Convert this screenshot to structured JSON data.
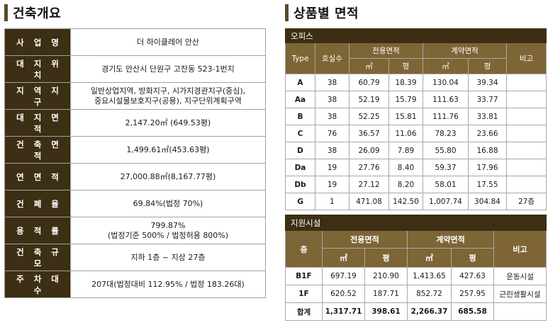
{
  "overview": {
    "title": "건축개요",
    "rows": [
      {
        "label": "사 업 명",
        "value": "더 하이클레어 안산"
      },
      {
        "label": "대 지 위 치",
        "value": "경기도 안산시 단원구 고잔동 523-1번지"
      },
      {
        "label": "지 역 지 구",
        "value": "일반상업지역, 방화지구, 시가지경관지구(중심),",
        "value2": "중요시설물보호지구(공용), 지구단위계획구역"
      },
      {
        "label": "대 지 면 적",
        "value": "2,147.20㎡ (649.53평)"
      },
      {
        "label": "건 축 면 적",
        "value": "1,499.61㎡(453.63평)"
      },
      {
        "label": "연 면 적",
        "value": "27,000.88㎡(8,167.77평)"
      },
      {
        "label": "건 폐 율",
        "value": "69.84%(법정 70%)"
      },
      {
        "label": "용 적 률",
        "value": "799.87%",
        "value2": "(법정기준 500% / 법정허용 800%)"
      },
      {
        "label": "건 축 규 모",
        "value": "지하 1층 ~ 지상 27층"
      },
      {
        "label": "주 차 대 수",
        "value": "207대(법정대비 112.95% / 법정 183.26대)"
      }
    ]
  },
  "area_by_product": {
    "title": "상품별 면적",
    "office": {
      "caption": "오피스",
      "headers": {
        "type": "Type",
        "units": "호실수",
        "exclusive": "전용면적",
        "contract": "계약면적",
        "note": "비고",
        "sqm": "㎡",
        "pyeong": "평"
      },
      "rows": [
        {
          "type": "A",
          "units": "38",
          "ex_sqm": "60.79",
          "ex_py": "18.39",
          "ct_sqm": "130.04",
          "ct_py": "39.34",
          "note": ""
        },
        {
          "type": "Aa",
          "units": "38",
          "ex_sqm": "52.19",
          "ex_py": "15.79",
          "ct_sqm": "111.63",
          "ct_py": "33.77",
          "note": ""
        },
        {
          "type": "B",
          "units": "38",
          "ex_sqm": "52.25",
          "ex_py": "15.81",
          "ct_sqm": "111.76",
          "ct_py": "33.81",
          "note": ""
        },
        {
          "type": "C",
          "units": "76",
          "ex_sqm": "36.57",
          "ex_py": "11.06",
          "ct_sqm": "78.23",
          "ct_py": "23.66",
          "note": ""
        },
        {
          "type": "D",
          "units": "38",
          "ex_sqm": "26.09",
          "ex_py": "7.89",
          "ct_sqm": "55.80",
          "ct_py": "16.88",
          "note": ""
        },
        {
          "type": "Da",
          "units": "19",
          "ex_sqm": "27.76",
          "ex_py": "8.40",
          "ct_sqm": "59.37",
          "ct_py": "17.96",
          "note": ""
        },
        {
          "type": "Db",
          "units": "19",
          "ex_sqm": "27.12",
          "ex_py": "8.20",
          "ct_sqm": "58.01",
          "ct_py": "17.55",
          "note": ""
        },
        {
          "type": "G",
          "units": "1",
          "ex_sqm": "471.08",
          "ex_py": "142.50",
          "ct_sqm": "1,007.74",
          "ct_py": "304.84",
          "note": "27층"
        }
      ]
    },
    "support": {
      "caption": "지원시설",
      "headers": {
        "floor": "층",
        "exclusive": "전용면적",
        "contract": "계약면적",
        "note": "비고",
        "sqm": "㎡",
        "pyeong": "평"
      },
      "rows": [
        {
          "floor": "B1F",
          "ex_sqm": "697.19",
          "ex_py": "210.90",
          "ct_sqm": "1,413.65",
          "ct_py": "427.63",
          "note": "운동시설"
        },
        {
          "floor": "1F",
          "ex_sqm": "620.52",
          "ex_py": "187.71",
          "ct_sqm": "852.72",
          "ct_py": "257.95",
          "note": "근린생활시설"
        }
      ],
      "total": {
        "floor": "합계",
        "ex_sqm": "1,317.71",
        "ex_py": "398.61",
        "ct_sqm": "2,266.37",
        "ct_py": "685.58",
        "note": ""
      }
    }
  },
  "colors": {
    "label_bg": "#3d2f14",
    "header_bg": "#7d6536",
    "border": "#a0a0a0"
  }
}
